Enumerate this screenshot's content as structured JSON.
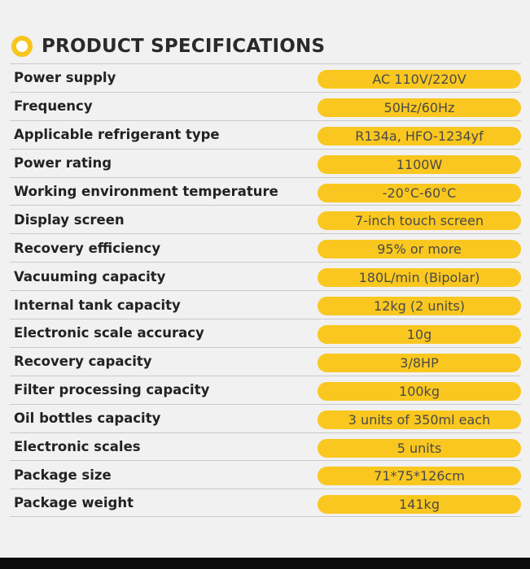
{
  "header": {
    "title": "PRODUCT SPECIFICATIONS"
  },
  "specs": [
    {
      "label": "Power supply",
      "value": "AC 110V/220V"
    },
    {
      "label": "Frequency",
      "value": "50Hz/60Hz"
    },
    {
      "label": "Applicable refrigerant type",
      "value": "R134a, HFO-1234yf"
    },
    {
      "label": "Power rating",
      "value": "1100W"
    },
    {
      "label": "Working environment temperature",
      "value": "-20°C-60°C"
    },
    {
      "label": "Display screen",
      "value": "7-inch touch screen"
    },
    {
      "label": "Recovery efficiency",
      "value": "95% or more"
    },
    {
      "label": "Vacuuming capacity",
      "value": "180L/min (Bipolar)"
    },
    {
      "label": "Internal tank capacity",
      "value": "12kg (2 units)"
    },
    {
      "label": "Electronic scale accuracy",
      "value": "10g"
    },
    {
      "label": "Recovery capacity",
      "value": "3/8HP"
    },
    {
      "label": "Filter processing capacity",
      "value": "100kg"
    },
    {
      "label": "Oil bottles capacity",
      "value": "3 units of 350ml each"
    },
    {
      "label": "Electronic scales",
      "value": "5 units"
    },
    {
      "label": "Package size",
      "value": "71*75*126cm"
    },
    {
      "label": "Package weight",
      "value": "141kg"
    }
  ],
  "colors": {
    "accent": "#f9c71f",
    "background": "#f1f1f1",
    "text": "#222222"
  }
}
